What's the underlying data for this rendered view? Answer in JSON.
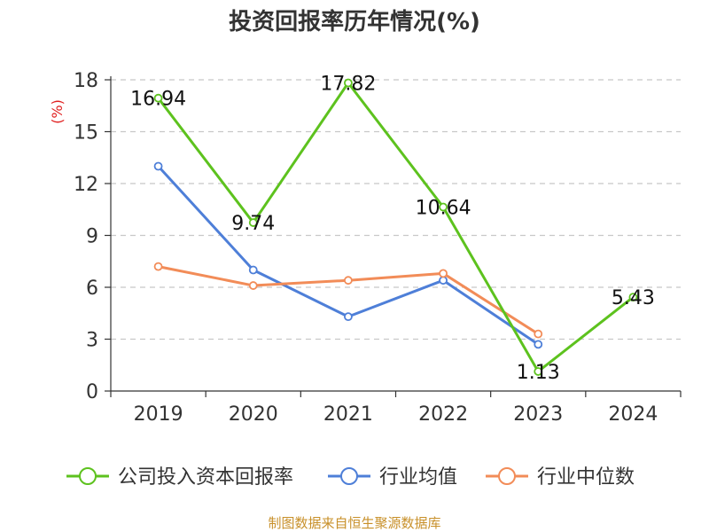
{
  "chart_data": {
    "type": "line",
    "title": "投资回报率历年情况(%)",
    "ylabel": "(%)",
    "xlabel": "",
    "categories": [
      "2019",
      "2020",
      "2021",
      "2022",
      "2023",
      "2024"
    ],
    "ylim": [
      0,
      18
    ],
    "yticks": [
      0,
      3,
      6,
      9,
      12,
      15,
      18
    ],
    "grid": true,
    "legend_position": "bottom",
    "series": [
      {
        "name": "公司投入资本回报率",
        "color": "#5dc21e",
        "values": [
          16.94,
          9.74,
          17.82,
          10.64,
          1.13,
          5.43
        ],
        "labels": [
          "16.94",
          "9.74",
          "17.82",
          "10.64",
          "1.13",
          "5.43"
        ]
      },
      {
        "name": "行业均值",
        "color": "#4e7fd8",
        "values": [
          13.0,
          7.0,
          4.3,
          6.4,
          2.7,
          null
        ]
      },
      {
        "name": "行业中位数",
        "color": "#f28c58",
        "values": [
          7.2,
          6.1,
          6.4,
          6.8,
          3.3,
          null
        ]
      }
    ]
  },
  "source": "制图数据来自恒生聚源数据库"
}
